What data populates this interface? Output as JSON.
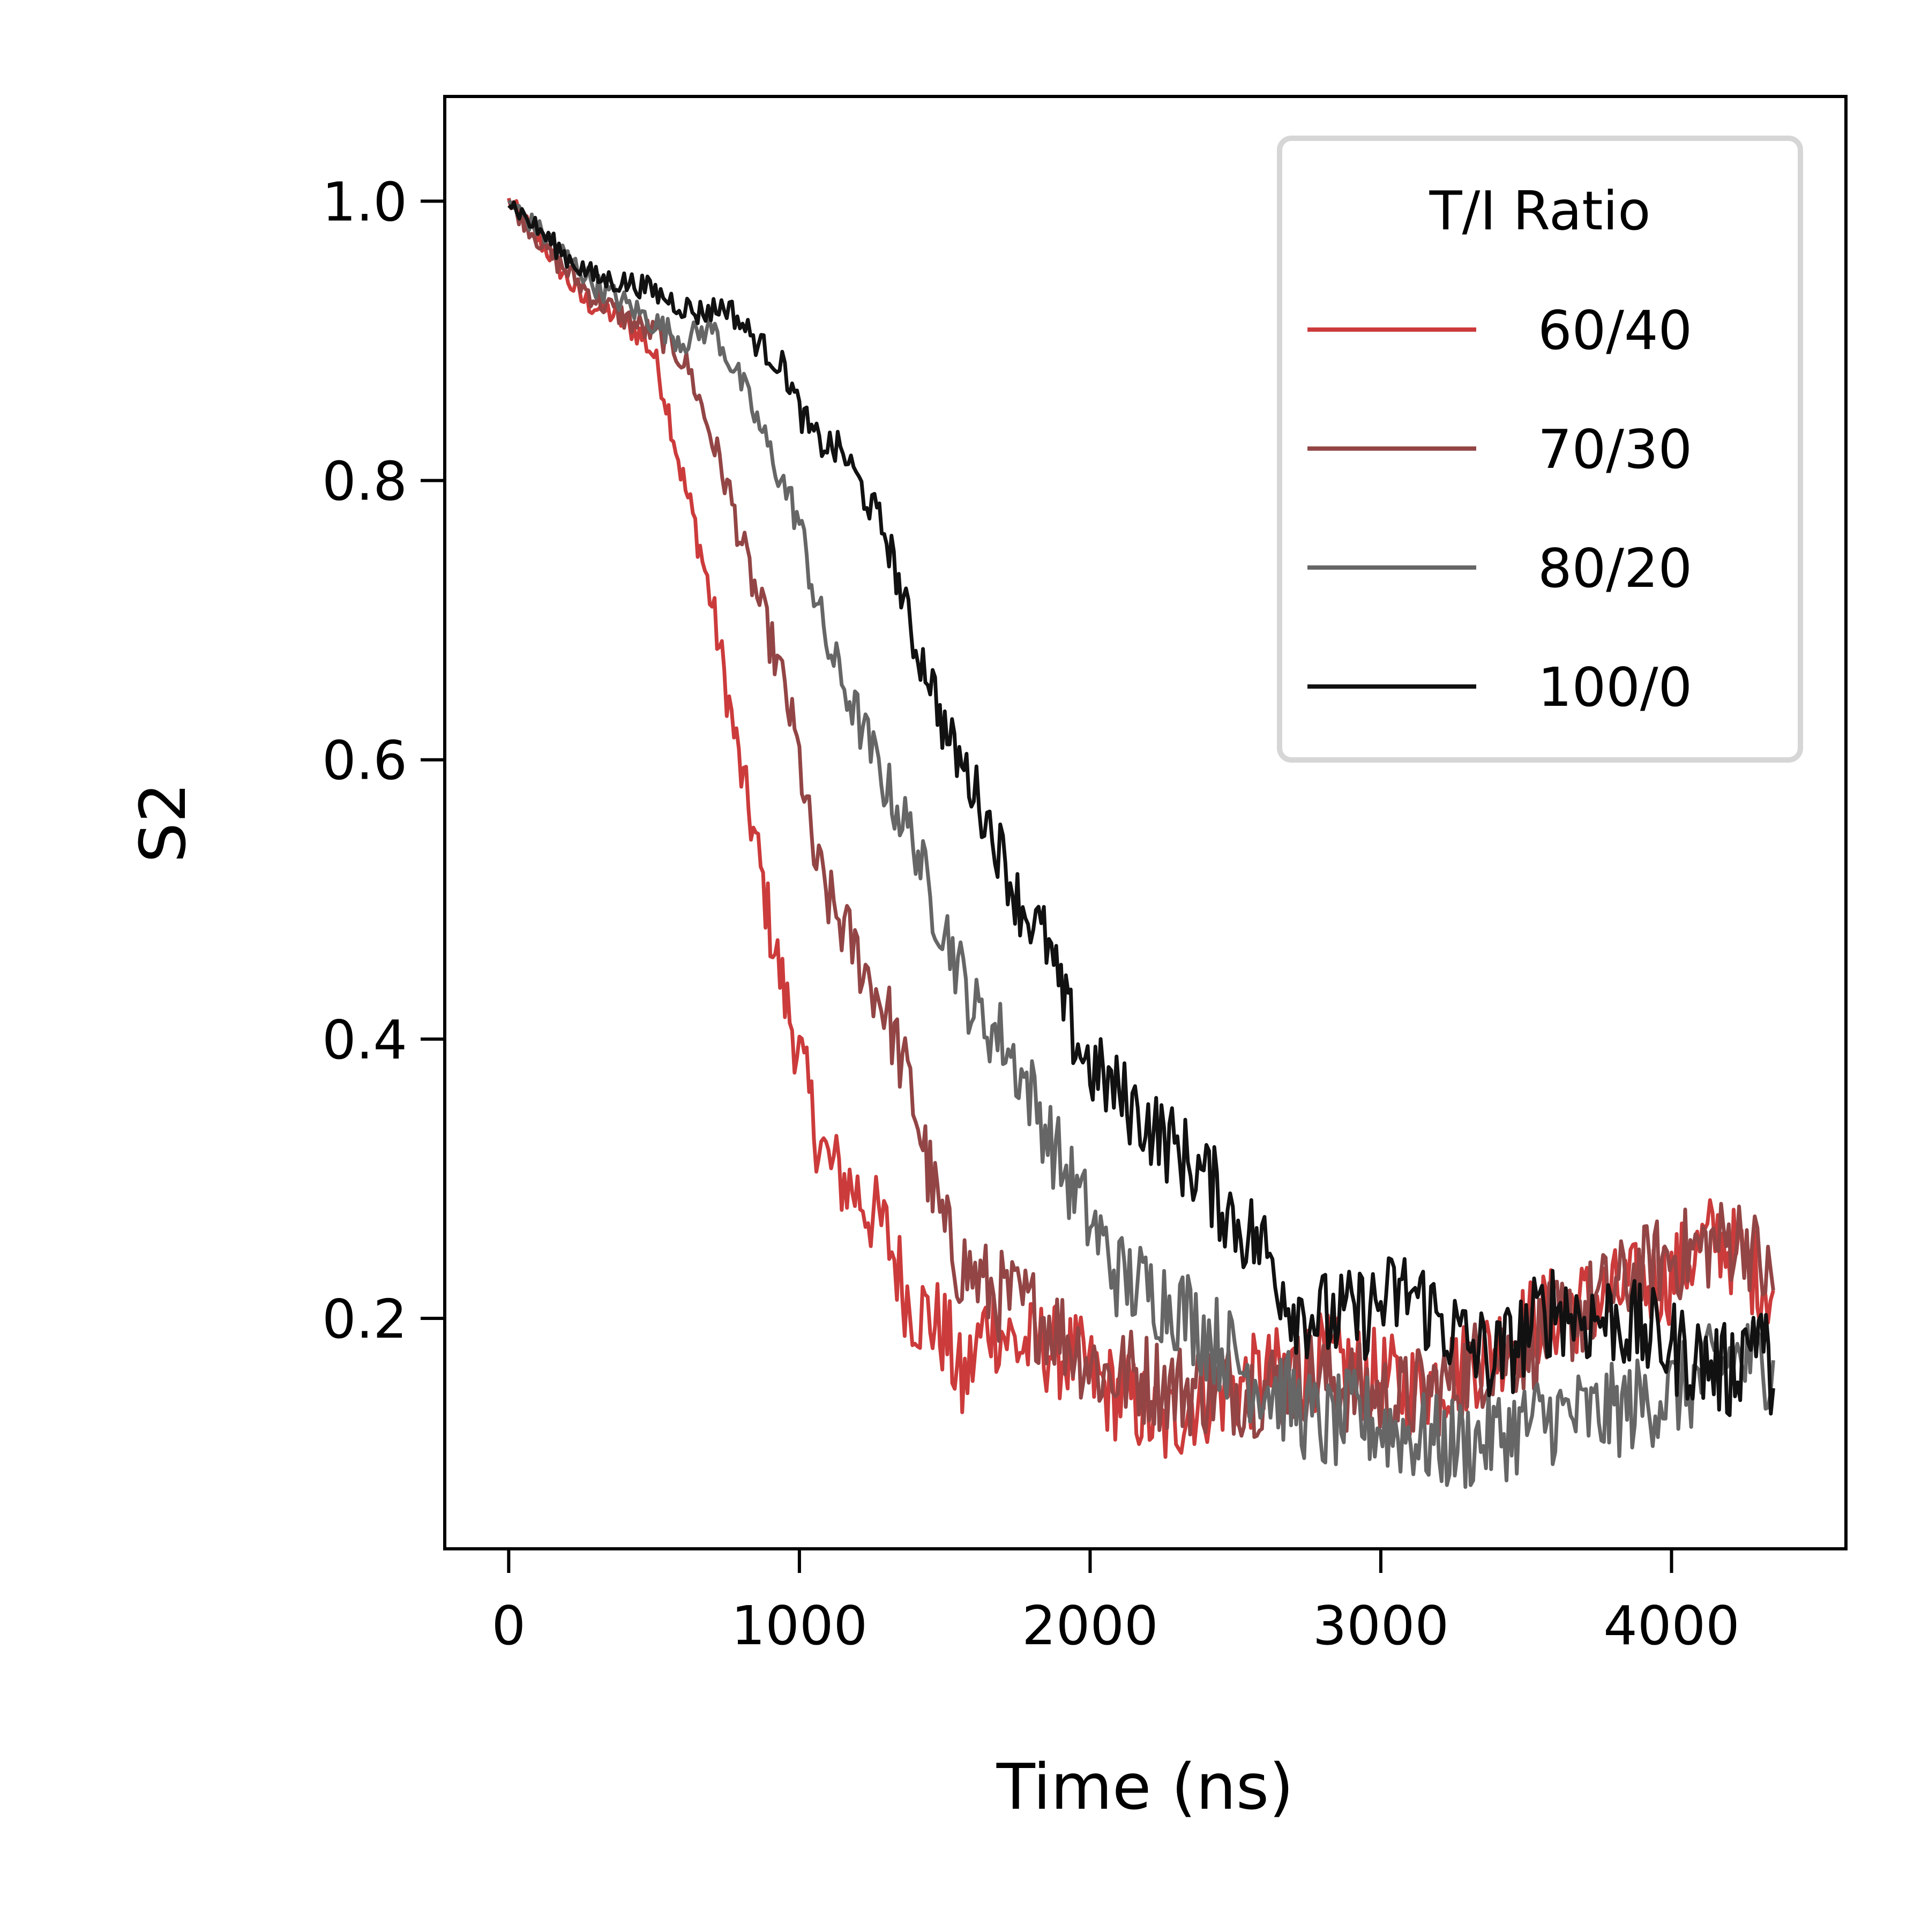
{
  "chart_data": {
    "type": "line",
    "title": "",
    "xlabel": "Time (ns)",
    "ylabel": "S2",
    "xlim": [
      -220,
      4600
    ],
    "ylim": [
      0.035,
      1.075
    ],
    "xticks": [
      0,
      1000,
      2000,
      3000,
      4000
    ],
    "xtick_labels": [
      "0",
      "1000",
      "2000",
      "3000",
      "4000"
    ],
    "yticks": [
      0.2,
      0.4,
      0.6,
      0.8,
      1.0
    ],
    "ytick_labels": [
      "0.2",
      "0.4",
      "0.6",
      "0.8",
      "1.0"
    ],
    "grid": false,
    "legend": {
      "title": "T/I Ratio",
      "position": "top-right"
    },
    "series": [
      {
        "name": "60/40",
        "color": "#cc3b3b",
        "points": [
          [
            0,
            1.0
          ],
          [
            150,
            0.96
          ],
          [
            250,
            0.93
          ],
          [
            350,
            0.92
          ],
          [
            450,
            0.905
          ],
          [
            500,
            0.89
          ],
          [
            550,
            0.85
          ],
          [
            600,
            0.8
          ],
          [
            650,
            0.76
          ],
          [
            700,
            0.71
          ],
          [
            750,
            0.65
          ],
          [
            800,
            0.59
          ],
          [
            850,
            0.54
          ],
          [
            900,
            0.48
          ],
          [
            950,
            0.43
          ],
          [
            1000,
            0.39
          ],
          [
            1050,
            0.34
          ],
          [
            1100,
            0.31
          ],
          [
            1200,
            0.29
          ],
          [
            1300,
            0.26
          ],
          [
            1380,
            0.21
          ],
          [
            1450,
            0.2
          ],
          [
            1500,
            0.19
          ],
          [
            1560,
            0.15
          ],
          [
            1650,
            0.2
          ],
          [
            1750,
            0.18
          ],
          [
            1850,
            0.18
          ],
          [
            1950,
            0.17
          ],
          [
            2050,
            0.15
          ],
          [
            2150,
            0.14
          ],
          [
            2250,
            0.12
          ],
          [
            2350,
            0.14
          ],
          [
            2500,
            0.15
          ],
          [
            2650,
            0.16
          ],
          [
            2800,
            0.17
          ],
          [
            2950,
            0.16
          ],
          [
            3100,
            0.15
          ],
          [
            3250,
            0.16
          ],
          [
            3400,
            0.18
          ],
          [
            3550,
            0.2
          ],
          [
            3700,
            0.21
          ],
          [
            3850,
            0.22
          ],
          [
            4000,
            0.23
          ],
          [
            4150,
            0.26
          ],
          [
            4250,
            0.24
          ],
          [
            4350,
            0.22
          ]
        ]
      },
      {
        "name": "70/30",
        "color": "#934545",
        "points": [
          [
            0,
            1.0
          ],
          [
            150,
            0.96
          ],
          [
            300,
            0.93
          ],
          [
            450,
            0.91
          ],
          [
            550,
            0.9
          ],
          [
            620,
            0.88
          ],
          [
            700,
            0.83
          ],
          [
            760,
            0.79
          ],
          [
            820,
            0.74
          ],
          [
            880,
            0.7
          ],
          [
            950,
            0.65
          ],
          [
            1000,
            0.6
          ],
          [
            1050,
            0.53
          ],
          [
            1100,
            0.5
          ],
          [
            1200,
            0.46
          ],
          [
            1300,
            0.42
          ],
          [
            1400,
            0.35
          ],
          [
            1450,
            0.3
          ],
          [
            1500,
            0.26
          ],
          [
            1550,
            0.24
          ],
          [
            1650,
            0.22
          ],
          [
            1750,
            0.21
          ],
          [
            1850,
            0.2
          ],
          [
            1950,
            0.18
          ],
          [
            2050,
            0.16
          ],
          [
            2150,
            0.16
          ],
          [
            2300,
            0.15
          ],
          [
            2450,
            0.15
          ],
          [
            2600,
            0.15
          ],
          [
            2750,
            0.16
          ],
          [
            2900,
            0.15
          ],
          [
            3050,
            0.14
          ],
          [
            3200,
            0.15
          ],
          [
            3350,
            0.17
          ],
          [
            3500,
            0.18
          ],
          [
            3650,
            0.2
          ],
          [
            3800,
            0.22
          ],
          [
            3950,
            0.24
          ],
          [
            4100,
            0.25
          ],
          [
            4250,
            0.26
          ],
          [
            4350,
            0.22
          ]
        ]
      },
      {
        "name": "80/20",
        "color": "#666666",
        "points": [
          [
            0,
            1.0
          ],
          [
            150,
            0.97
          ],
          [
            300,
            0.94
          ],
          [
            450,
            0.92
          ],
          [
            600,
            0.9
          ],
          [
            700,
            0.91
          ],
          [
            800,
            0.87
          ],
          [
            900,
            0.82
          ],
          [
            1000,
            0.77
          ],
          [
            1050,
            0.72
          ],
          [
            1100,
            0.68
          ],
          [
            1200,
            0.63
          ],
          [
            1300,
            0.58
          ],
          [
            1400,
            0.54
          ],
          [
            1450,
            0.5
          ],
          [
            1500,
            0.48
          ],
          [
            1600,
            0.42
          ],
          [
            1700,
            0.4
          ],
          [
            1800,
            0.36
          ],
          [
            1900,
            0.31
          ],
          [
            2000,
            0.27
          ],
          [
            2100,
            0.23
          ],
          [
            2200,
            0.22
          ],
          [
            2300,
            0.21
          ],
          [
            2400,
            0.19
          ],
          [
            2550,
            0.16
          ],
          [
            2700,
            0.14
          ],
          [
            2800,
            0.12
          ],
          [
            2900,
            0.13
          ],
          [
            3050,
            0.12
          ],
          [
            3200,
            0.11
          ],
          [
            3300,
            0.11
          ],
          [
            3450,
            0.12
          ],
          [
            3600,
            0.13
          ],
          [
            3750,
            0.13
          ],
          [
            3900,
            0.14
          ],
          [
            4050,
            0.15
          ],
          [
            4200,
            0.17
          ],
          [
            4350,
            0.17
          ]
        ]
      },
      {
        "name": "100/0",
        "color": "#111111",
        "points": [
          [
            0,
            1.0
          ],
          [
            100,
            0.98
          ],
          [
            200,
            0.96
          ],
          [
            300,
            0.945
          ],
          [
            450,
            0.94
          ],
          [
            550,
            0.93
          ],
          [
            650,
            0.92
          ],
          [
            750,
            0.925
          ],
          [
            850,
            0.9
          ],
          [
            950,
            0.88
          ],
          [
            1000,
            0.85
          ],
          [
            1050,
            0.83
          ],
          [
            1150,
            0.82
          ],
          [
            1250,
            0.78
          ],
          [
            1300,
            0.76
          ],
          [
            1350,
            0.72
          ],
          [
            1400,
            0.68
          ],
          [
            1450,
            0.66
          ],
          [
            1500,
            0.62
          ],
          [
            1550,
            0.6
          ],
          [
            1600,
            0.58
          ],
          [
            1700,
            0.53
          ],
          [
            1750,
            0.5
          ],
          [
            1850,
            0.47
          ],
          [
            1900,
            0.43
          ],
          [
            1950,
            0.4
          ],
          [
            2000,
            0.38
          ],
          [
            2100,
            0.36
          ],
          [
            2200,
            0.34
          ],
          [
            2300,
            0.32
          ],
          [
            2400,
            0.3
          ],
          [
            2500,
            0.27
          ],
          [
            2600,
            0.25
          ],
          [
            2700,
            0.21
          ],
          [
            2800,
            0.2
          ],
          [
            2900,
            0.2
          ],
          [
            3000,
            0.21
          ],
          [
            3100,
            0.22
          ],
          [
            3200,
            0.2
          ],
          [
            3300,
            0.18
          ],
          [
            3400,
            0.17
          ],
          [
            3500,
            0.19
          ],
          [
            3600,
            0.21
          ],
          [
            3700,
            0.2
          ],
          [
            3800,
            0.2
          ],
          [
            3900,
            0.19
          ],
          [
            4000,
            0.18
          ],
          [
            4100,
            0.17
          ],
          [
            4200,
            0.16
          ],
          [
            4300,
            0.2
          ],
          [
            4350,
            0.15
          ]
        ]
      }
    ]
  }
}
